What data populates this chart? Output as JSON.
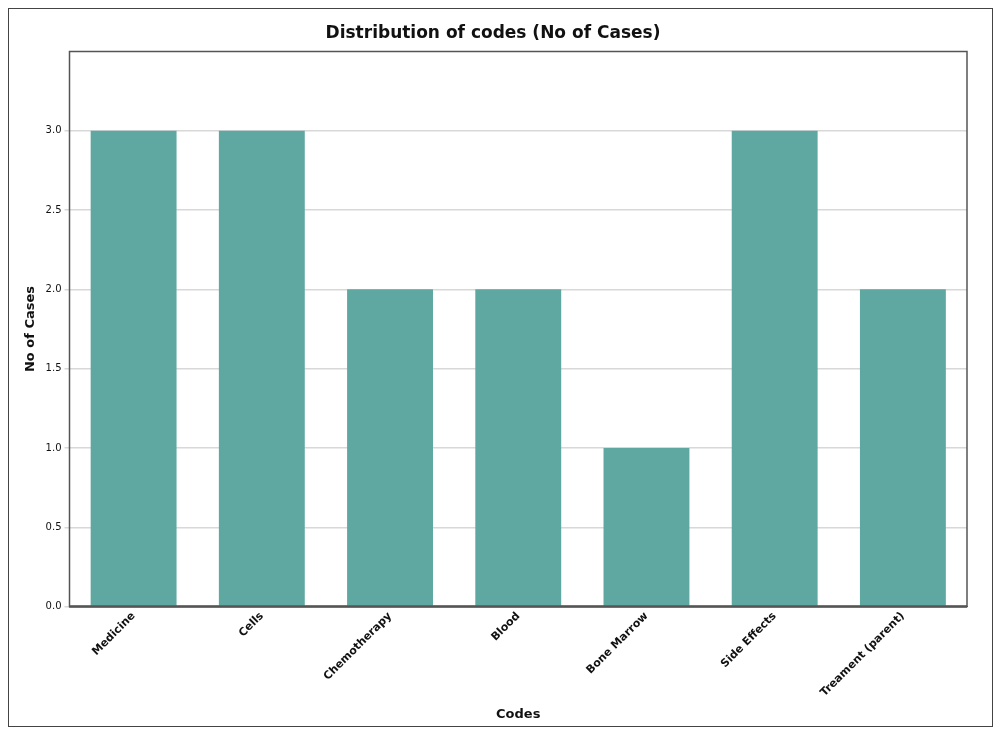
{
  "chart_data": {
    "type": "bar",
    "title": "Distribution of codes (No of Cases)",
    "xlabel": "Codes",
    "ylabel": "No of Cases",
    "categories": [
      "Medicine",
      "Cells",
      "Chemotherapy",
      "Blood",
      "Bone Marrow",
      "Side Effects",
      "Treament (parent)"
    ],
    "values": [
      3,
      3,
      2,
      2,
      1,
      3,
      2
    ],
    "color": "#5fa8a2",
    "ylim": [
      0,
      3.5
    ],
    "yticks": [
      {
        "value": 0,
        "label": "0.0"
      },
      {
        "value": 0.5,
        "label": "0.5"
      },
      {
        "value": 1,
        "label": "1.0"
      },
      {
        "value": 1.5,
        "label": "1.5"
      },
      {
        "value": 2,
        "label": "2.0"
      },
      {
        "value": 2.5,
        "label": "2.5"
      },
      {
        "value": 3,
        "label": "3.0"
      }
    ],
    "grid": "y",
    "legend": false
  }
}
